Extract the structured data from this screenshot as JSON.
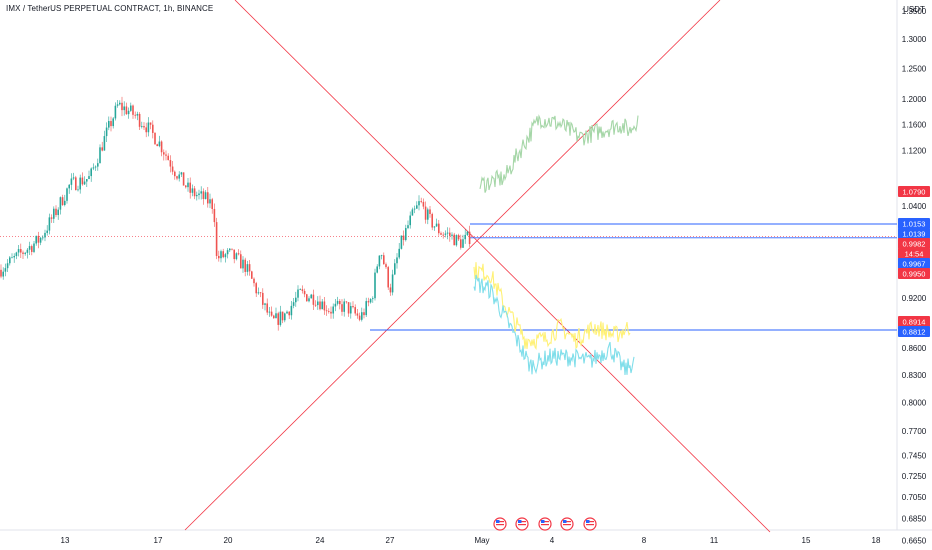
{
  "header": {
    "title": "IMX / TetherUS PERPETUAL CONTRACT, 1h, BINANCE",
    "currency": "USDT"
  },
  "chart_data": {
    "type": "candlestick",
    "title": "IMX / TetherUS PERPETUAL CONTRACT, 1h, BINANCE",
    "ylabel": "USDT",
    "y_scale": "log",
    "ylim": [
      0.65,
      1.42
    ],
    "y_ticks": [
      "1.3500",
      "1.3000",
      "1.2500",
      "1.2000",
      "1.1600",
      "1.1200",
      "1.0400",
      "0.9200",
      "0.8600",
      "0.8300",
      "0.8000",
      "0.7700",
      "0.7450",
      "0.7250",
      "0.7050",
      "0.6850",
      "0.6650"
    ],
    "x_ticks": [
      "13",
      "17",
      "20",
      "24",
      "27",
      "May",
      "4",
      "8",
      "11",
      "15",
      "18"
    ],
    "price_tags": [
      {
        "label": "1.0790",
        "value": 1.079,
        "color": "#f23645"
      },
      {
        "label": "1.0153",
        "value": 1.0153,
        "color": "#2962ff"
      },
      {
        "label": "1.0139",
        "value": 1.0139,
        "color": "#2962ff"
      },
      {
        "label": "0.9982",
        "value": 0.9982,
        "color": "#f23645"
      },
      {
        "label": "14:54",
        "value": 0.9982,
        "color": "#f23645",
        "countdown": true
      },
      {
        "label": "0.9967",
        "value": 0.9967,
        "color": "#2962ff"
      },
      {
        "label": "0.9950",
        "value": 0.995,
        "color": "#f23645"
      },
      {
        "label": "0.8914",
        "value": 0.8914,
        "color": "#f23645"
      },
      {
        "label": "0.8812",
        "value": 0.8812,
        "color": "#2962ff"
      }
    ],
    "horizontal_lines": [
      {
        "value": 1.0153,
        "color": "#2962ff"
      },
      {
        "value": 0.9967,
        "color": "#2962ff"
      },
      {
        "value": 0.8812,
        "color": "#2962ff"
      },
      {
        "value": 0.9982,
        "color": "#f23645",
        "dotted": true
      }
    ],
    "projections": [
      {
        "name": "",
        "color": "#a5d6a7"
      },
      {
        "name": "",
        "color": "#fff176"
      },
      {
        "name": "",
        "color": "#80deea"
      }
    ],
    "event_markers": 5
  },
  "icons": {
    "event": "us-flag-event-icon"
  }
}
